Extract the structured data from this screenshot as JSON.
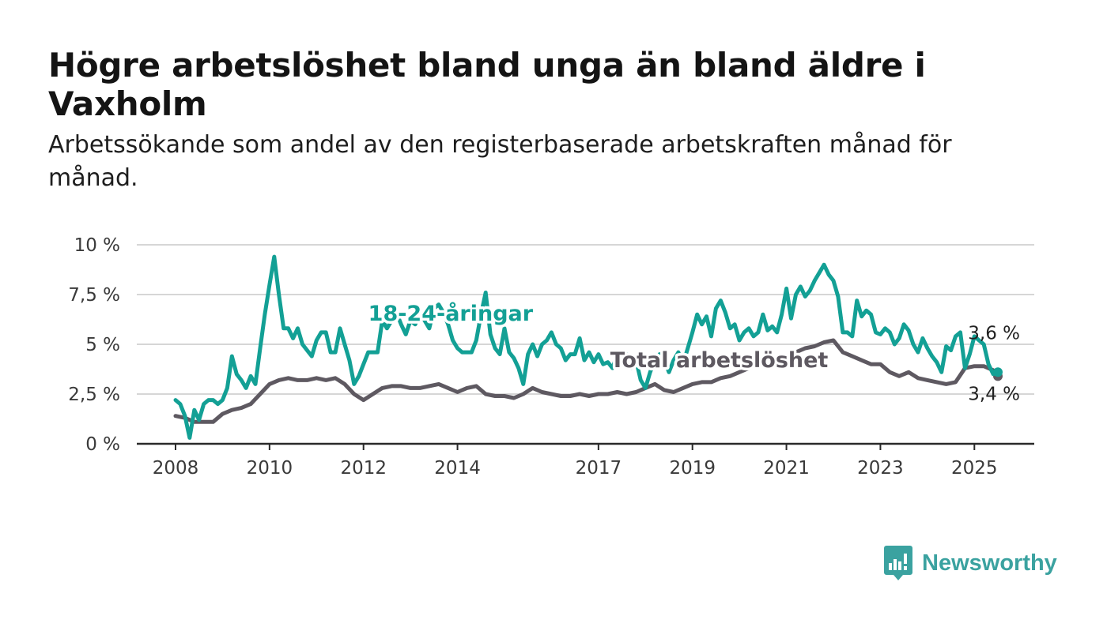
{
  "title": "Högre arbetslöshet bland unga än bland äldre i Vaxholm",
  "subtitle": "Arbetssökande som andel av den registerbaserade arbetskraften månad för månad.",
  "brand": {
    "name": "Newsworthy",
    "color": "#3ba2a0",
    "icon": "bar-chart-speech-bubble-icon"
  },
  "chart_data": {
    "type": "line",
    "x_unit": "year",
    "x_ticks": [
      2008,
      2010,
      2012,
      2014,
      2017,
      2019,
      2021,
      2023,
      2025
    ],
    "x_tick_labels": [
      "2008",
      "2010",
      "2012",
      "2014",
      "2017",
      "2019",
      "2021",
      "2023",
      "2025"
    ],
    "y_ticks": [
      0,
      2.5,
      5,
      7.5,
      10
    ],
    "y_tick_labels": [
      "0 %",
      "2,5 %",
      "5 %",
      "7,5 %",
      "10 %"
    ],
    "xlim": [
      2008.0,
      2025.5
    ],
    "ylim": [
      0,
      10
    ],
    "grid": true,
    "series": [
      {
        "name": "18-24-åringar",
        "color": "#13a095",
        "end_label": "3,6 %",
        "points": [
          [
            2008.0,
            2.2
          ],
          [
            2008.1,
            2.0
          ],
          [
            2008.2,
            1.4
          ],
          [
            2008.3,
            0.3
          ],
          [
            2008.4,
            1.7
          ],
          [
            2008.5,
            1.2
          ],
          [
            2008.6,
            2.0
          ],
          [
            2008.7,
            2.2
          ],
          [
            2008.8,
            2.2
          ],
          [
            2008.9,
            2.0
          ],
          [
            2009.0,
            2.2
          ],
          [
            2009.1,
            2.8
          ],
          [
            2009.2,
            4.4
          ],
          [
            2009.3,
            3.5
          ],
          [
            2009.4,
            3.2
          ],
          [
            2009.5,
            2.8
          ],
          [
            2009.6,
            3.4
          ],
          [
            2009.7,
            3.0
          ],
          [
            2009.8,
            4.8
          ],
          [
            2009.9,
            6.5
          ],
          [
            2010.0,
            8.0
          ],
          [
            2010.1,
            9.4
          ],
          [
            2010.2,
            7.5
          ],
          [
            2010.3,
            5.8
          ],
          [
            2010.4,
            5.8
          ],
          [
            2010.5,
            5.3
          ],
          [
            2010.6,
            5.8
          ],
          [
            2010.7,
            5.0
          ],
          [
            2010.8,
            4.7
          ],
          [
            2010.9,
            4.4
          ],
          [
            2011.0,
            5.2
          ],
          [
            2011.1,
            5.6
          ],
          [
            2011.2,
            5.6
          ],
          [
            2011.3,
            4.6
          ],
          [
            2011.4,
            4.6
          ],
          [
            2011.5,
            5.8
          ],
          [
            2011.6,
            5.0
          ],
          [
            2011.7,
            4.2
          ],
          [
            2011.8,
            3.0
          ],
          [
            2011.9,
            3.4
          ],
          [
            2012.0,
            4.0
          ],
          [
            2012.1,
            4.6
          ],
          [
            2012.2,
            4.6
          ],
          [
            2012.3,
            4.6
          ],
          [
            2012.4,
            6.2
          ],
          [
            2012.5,
            5.8
          ],
          [
            2012.6,
            6.2
          ],
          [
            2012.7,
            6.6
          ],
          [
            2012.8,
            6.0
          ],
          [
            2012.9,
            5.5
          ],
          [
            2013.0,
            6.2
          ],
          [
            2013.1,
            6.0
          ],
          [
            2013.2,
            6.6
          ],
          [
            2013.3,
            6.2
          ],
          [
            2013.4,
            5.8
          ],
          [
            2013.5,
            6.8
          ],
          [
            2013.6,
            7.0
          ],
          [
            2013.7,
            6.6
          ],
          [
            2013.8,
            6.0
          ],
          [
            2013.9,
            5.2
          ],
          [
            2014.0,
            4.8
          ],
          [
            2014.1,
            4.6
          ],
          [
            2014.2,
            4.6
          ],
          [
            2014.3,
            4.6
          ],
          [
            2014.4,
            5.2
          ],
          [
            2014.5,
            6.5
          ],
          [
            2014.6,
            7.6
          ],
          [
            2014.7,
            5.5
          ],
          [
            2014.8,
            4.8
          ],
          [
            2014.9,
            4.5
          ],
          [
            2015.0,
            5.8
          ],
          [
            2015.1,
            4.6
          ],
          [
            2015.2,
            4.3
          ],
          [
            2015.3,
            3.8
          ],
          [
            2015.4,
            3.0
          ],
          [
            2015.5,
            4.5
          ],
          [
            2015.6,
            5.0
          ],
          [
            2015.7,
            4.4
          ],
          [
            2015.8,
            5.0
          ],
          [
            2015.9,
            5.2
          ],
          [
            2016.0,
            5.6
          ],
          [
            2016.1,
            5.0
          ],
          [
            2016.2,
            4.8
          ],
          [
            2016.3,
            4.2
          ],
          [
            2016.4,
            4.5
          ],
          [
            2016.5,
            4.5
          ],
          [
            2016.6,
            5.3
          ],
          [
            2016.7,
            4.2
          ],
          [
            2016.8,
            4.6
          ],
          [
            2016.9,
            4.1
          ],
          [
            2017.0,
            4.5
          ],
          [
            2017.1,
            4.0
          ],
          [
            2017.2,
            4.1
          ],
          [
            2017.3,
            3.8
          ],
          [
            2017.4,
            4.5
          ],
          [
            2017.5,
            4.0
          ],
          [
            2017.6,
            4.5
          ],
          [
            2017.7,
            3.8
          ],
          [
            2017.8,
            4.2
          ],
          [
            2017.9,
            3.2
          ],
          [
            2018.0,
            2.8
          ],
          [
            2018.1,
            3.6
          ],
          [
            2018.2,
            4.2
          ],
          [
            2018.3,
            4.5
          ],
          [
            2018.4,
            4.2
          ],
          [
            2018.5,
            3.6
          ],
          [
            2018.6,
            4.2
          ],
          [
            2018.7,
            4.6
          ],
          [
            2018.8,
            4.0
          ],
          [
            2018.9,
            4.8
          ],
          [
            2019.0,
            5.6
          ],
          [
            2019.1,
            6.5
          ],
          [
            2019.2,
            6.0
          ],
          [
            2019.3,
            6.4
          ],
          [
            2019.4,
            5.4
          ],
          [
            2019.5,
            6.8
          ],
          [
            2019.6,
            7.2
          ],
          [
            2019.7,
            6.6
          ],
          [
            2019.8,
            5.8
          ],
          [
            2019.9,
            6.0
          ],
          [
            2020.0,
            5.2
          ],
          [
            2020.1,
            5.6
          ],
          [
            2020.2,
            5.8
          ],
          [
            2020.3,
            5.4
          ],
          [
            2020.4,
            5.6
          ],
          [
            2020.5,
            6.5
          ],
          [
            2020.6,
            5.7
          ],
          [
            2020.7,
            5.9
          ],
          [
            2020.8,
            5.6
          ],
          [
            2020.9,
            6.5
          ],
          [
            2021.0,
            7.8
          ],
          [
            2021.1,
            6.3
          ],
          [
            2021.2,
            7.5
          ],
          [
            2021.3,
            7.9
          ],
          [
            2021.4,
            7.4
          ],
          [
            2021.5,
            7.7
          ],
          [
            2021.6,
            8.2
          ],
          [
            2021.7,
            8.6
          ],
          [
            2021.8,
            9.0
          ],
          [
            2021.9,
            8.5
          ],
          [
            2022.0,
            8.2
          ],
          [
            2022.1,
            7.4
          ],
          [
            2022.2,
            5.6
          ],
          [
            2022.3,
            5.6
          ],
          [
            2022.4,
            5.4
          ],
          [
            2022.5,
            7.2
          ],
          [
            2022.6,
            6.4
          ],
          [
            2022.7,
            6.7
          ],
          [
            2022.8,
            6.5
          ],
          [
            2022.9,
            5.6
          ],
          [
            2023.0,
            5.5
          ],
          [
            2023.1,
            5.8
          ],
          [
            2023.2,
            5.6
          ],
          [
            2023.3,
            5.0
          ],
          [
            2023.4,
            5.3
          ],
          [
            2023.5,
            6.0
          ],
          [
            2023.6,
            5.7
          ],
          [
            2023.7,
            5.0
          ],
          [
            2023.8,
            4.6
          ],
          [
            2023.9,
            5.3
          ],
          [
            2024.0,
            4.8
          ],
          [
            2024.1,
            4.4
          ],
          [
            2024.2,
            4.1
          ],
          [
            2024.3,
            3.6
          ],
          [
            2024.4,
            4.9
          ],
          [
            2024.5,
            4.7
          ],
          [
            2024.6,
            5.4
          ],
          [
            2024.7,
            5.6
          ],
          [
            2024.8,
            3.8
          ],
          [
            2024.9,
            4.5
          ],
          [
            2025.0,
            5.4
          ],
          [
            2025.1,
            5.2
          ],
          [
            2025.2,
            5.0
          ],
          [
            2025.3,
            4.0
          ],
          [
            2025.4,
            3.5
          ],
          [
            2025.5,
            3.6
          ]
        ]
      },
      {
        "name": "Total arbetslöshet",
        "color": "#5e5961",
        "end_label": "3,4 %",
        "points": [
          [
            2008.0,
            1.4
          ],
          [
            2008.2,
            1.3
          ],
          [
            2008.4,
            1.1
          ],
          [
            2008.6,
            1.1
          ],
          [
            2008.8,
            1.1
          ],
          [
            2009.0,
            1.5
          ],
          [
            2009.2,
            1.7
          ],
          [
            2009.4,
            1.8
          ],
          [
            2009.6,
            2.0
          ],
          [
            2009.8,
            2.5
          ],
          [
            2010.0,
            3.0
          ],
          [
            2010.2,
            3.2
          ],
          [
            2010.4,
            3.3
          ],
          [
            2010.6,
            3.2
          ],
          [
            2010.8,
            3.2
          ],
          [
            2011.0,
            3.3
          ],
          [
            2011.2,
            3.2
          ],
          [
            2011.4,
            3.3
          ],
          [
            2011.6,
            3.0
          ],
          [
            2011.8,
            2.5
          ],
          [
            2012.0,
            2.2
          ],
          [
            2012.2,
            2.5
          ],
          [
            2012.4,
            2.8
          ],
          [
            2012.6,
            2.9
          ],
          [
            2012.8,
            2.9
          ],
          [
            2013.0,
            2.8
          ],
          [
            2013.2,
            2.8
          ],
          [
            2013.4,
            2.9
          ],
          [
            2013.6,
            3.0
          ],
          [
            2013.8,
            2.8
          ],
          [
            2014.0,
            2.6
          ],
          [
            2014.2,
            2.8
          ],
          [
            2014.4,
            2.9
          ],
          [
            2014.6,
            2.5
          ],
          [
            2014.8,
            2.4
          ],
          [
            2015.0,
            2.4
          ],
          [
            2015.2,
            2.3
          ],
          [
            2015.4,
            2.5
          ],
          [
            2015.6,
            2.8
          ],
          [
            2015.8,
            2.6
          ],
          [
            2016.0,
            2.5
          ],
          [
            2016.2,
            2.4
          ],
          [
            2016.4,
            2.4
          ],
          [
            2016.6,
            2.5
          ],
          [
            2016.8,
            2.4
          ],
          [
            2017.0,
            2.5
          ],
          [
            2017.2,
            2.5
          ],
          [
            2017.4,
            2.6
          ],
          [
            2017.6,
            2.5
          ],
          [
            2017.8,
            2.6
          ],
          [
            2018.0,
            2.8
          ],
          [
            2018.2,
            3.0
          ],
          [
            2018.4,
            2.7
          ],
          [
            2018.6,
            2.6
          ],
          [
            2018.8,
            2.8
          ],
          [
            2019.0,
            3.0
          ],
          [
            2019.2,
            3.1
          ],
          [
            2019.4,
            3.1
          ],
          [
            2019.6,
            3.3
          ],
          [
            2019.8,
            3.4
          ],
          [
            2020.0,
            3.6
          ],
          [
            2020.2,
            3.8
          ],
          [
            2020.4,
            4.0
          ],
          [
            2020.6,
            4.1
          ],
          [
            2020.8,
            4.3
          ],
          [
            2021.0,
            4.4
          ],
          [
            2021.2,
            4.6
          ],
          [
            2021.4,
            4.8
          ],
          [
            2021.6,
            4.9
          ],
          [
            2021.8,
            5.1
          ],
          [
            2022.0,
            5.2
          ],
          [
            2022.2,
            4.6
          ],
          [
            2022.4,
            4.4
          ],
          [
            2022.6,
            4.2
          ],
          [
            2022.8,
            4.0
          ],
          [
            2023.0,
            4.0
          ],
          [
            2023.2,
            3.6
          ],
          [
            2023.4,
            3.4
          ],
          [
            2023.6,
            3.6
          ],
          [
            2023.8,
            3.3
          ],
          [
            2024.0,
            3.2
          ],
          [
            2024.2,
            3.1
          ],
          [
            2024.4,
            3.0
          ],
          [
            2024.6,
            3.1
          ],
          [
            2024.8,
            3.8
          ],
          [
            2025.0,
            3.9
          ],
          [
            2025.2,
            3.9
          ],
          [
            2025.4,
            3.7
          ],
          [
            2025.5,
            3.4
          ]
        ]
      }
    ],
    "series_labels": [
      {
        "text": "18-24-åringar",
        "series": 0,
        "x": 2012.1,
        "y": 6.2
      },
      {
        "text": "Total arbetslöshet",
        "series": 1,
        "x": 2017.25,
        "y": 3.85
      }
    ]
  }
}
